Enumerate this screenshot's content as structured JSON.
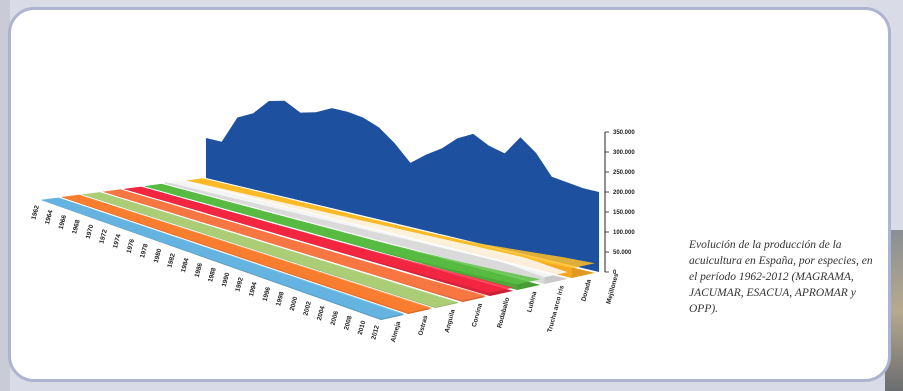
{
  "caption": "Evolución de la producción de la acuicultura en España, por especies, en el período 1962-2012 (MAGRAMA, JACUMAR, ESACUA, APROMAR y OPP).",
  "chart_data": {
    "type": "area",
    "title": "",
    "xlabel": "",
    "ylabel": "",
    "ylim": [
      0,
      350000
    ],
    "y_ticks": [
      "350.000",
      "300.000",
      "250.000",
      "200.000",
      "150.000",
      "100.000",
      "50.000",
      "0"
    ],
    "x_tick_labels": [
      "1962",
      "1964",
      "1966",
      "1968",
      "1970",
      "1972",
      "1974",
      "1976",
      "1978",
      "1980",
      "1982",
      "1984",
      "1986",
      "1988",
      "1990",
      "1992",
      "1994",
      "1996",
      "1998",
      "2000",
      "2002",
      "2004",
      "2006",
      "2008",
      "2010",
      "2012"
    ],
    "series": [
      {
        "name": "Almeja",
        "color": "#5aa0c8",
        "values": [
          400,
          500,
          600,
          700,
          800,
          900,
          1000,
          1100,
          1200,
          1300,
          1500,
          1700,
          1900,
          2000,
          2100,
          2200,
          2300,
          2400,
          2500,
          2600,
          2700,
          2800,
          2900,
          2900,
          2800,
          2700
        ]
      },
      {
        "name": "Ostras",
        "color": "#e8702a",
        "values": [
          800,
          900,
          1000,
          1100,
          1200,
          1300,
          1400,
          1500,
          1600,
          1700,
          1800,
          1900,
          2000,
          2100,
          2200,
          2300,
          2400,
          2500,
          2600,
          2700,
          2800,
          2900,
          3000,
          3100,
          3200,
          3300
        ]
      },
      {
        "name": "Anguila",
        "color": "#98b86a",
        "values": [
          200,
          250,
          300,
          350,
          400,
          450,
          500,
          550,
          600,
          650,
          700,
          750,
          800,
          850,
          900,
          950,
          1000,
          1050,
          1100,
          1150,
          1200,
          1250,
          1300,
          1350,
          1400,
          1450
        ]
      },
      {
        "name": "Corvina",
        "color": "#e46a3a",
        "values": [
          0,
          0,
          0,
          0,
          0,
          0,
          0,
          0,
          0,
          0,
          0,
          0,
          0,
          0,
          0,
          0,
          0,
          0,
          200,
          400,
          800,
          1200,
          1800,
          2500,
          3200,
          3800
        ]
      },
      {
        "name": "Rodaballo",
        "color": "#d9233b",
        "values": [
          0,
          0,
          0,
          0,
          0,
          0,
          0,
          0,
          0,
          0,
          100,
          200,
          400,
          700,
          1000,
          1500,
          2000,
          2500,
          3000,
          3600,
          4200,
          5000,
          6000,
          7000,
          7500,
          8000
        ]
      },
      {
        "name": "Lubina",
        "color": "#4fa83a",
        "values": [
          0,
          0,
          0,
          0,
          0,
          0,
          0,
          0,
          0,
          0,
          0,
          0,
          100,
          300,
          600,
          1000,
          1500,
          2200,
          3000,
          4000,
          5000,
          6500,
          8000,
          10000,
          12000,
          14000
        ]
      },
      {
        "name": "Trucha arco iris",
        "color": "#dadada",
        "values": [
          4000,
          5000,
          6000,
          7000,
          8000,
          9000,
          10000,
          11000,
          12000,
          13000,
          14000,
          15000,
          16000,
          17000,
          18000,
          19000,
          20000,
          21000,
          22000,
          23000,
          24000,
          25000,
          26000,
          24000,
          20000,
          17000
        ]
      },
      {
        "name": "Dorada",
        "color": "#f5a623",
        "values": [
          0,
          0,
          0,
          0,
          0,
          0,
          0,
          0,
          0,
          0,
          0,
          0,
          100,
          300,
          600,
          1000,
          1800,
          3000,
          5000,
          8000,
          11000,
          14000,
          17000,
          20000,
          22000,
          24000
        ]
      },
      {
        "name": "Mejillones",
        "color": "#1e50a0",
        "values": [
          100000,
          100000,
          170000,
          190000,
          230000,
          240000,
          220000,
          230000,
          250000,
          250000,
          245000,
          230000,
          200000,
          160000,
          190000,
          215000,
          250000,
          270000,
          250000,
          240000,
          290000,
          260000,
          210000,
          205000,
          200000,
          200000
        ]
      }
    ]
  }
}
